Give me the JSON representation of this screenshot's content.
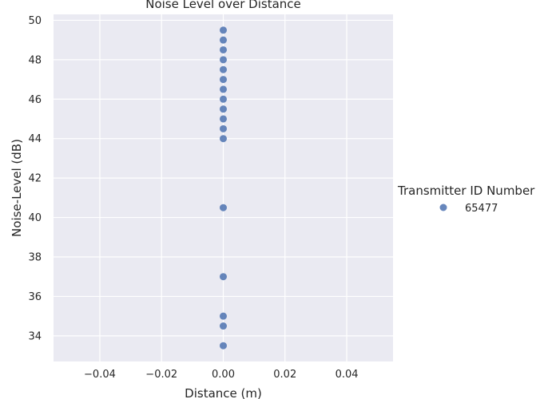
{
  "chart_data": {
    "type": "scatter",
    "title": "Noise Level over Distance",
    "xlabel": "Distance (m)",
    "ylabel": "Noise-Level (dB)",
    "xlim": [
      -0.055,
      0.055
    ],
    "ylim": [
      32.7,
      50.3
    ],
    "xticks": [
      -0.04,
      -0.02,
      0.0,
      0.02,
      0.04
    ],
    "xtick_labels": [
      "−0.04",
      "−0.02",
      "0.00",
      "0.02",
      "0.04"
    ],
    "yticks": [
      34,
      36,
      38,
      40,
      42,
      44,
      46,
      48,
      50
    ],
    "ytick_labels": [
      "34",
      "36",
      "38",
      "40",
      "42",
      "44",
      "46",
      "48",
      "50"
    ],
    "grid": true,
    "legend": {
      "title": "Transmitter ID Number",
      "placement": "right",
      "entries": [
        {
          "label": "65477",
          "color": "#4c72b0"
        }
      ]
    },
    "series": [
      {
        "name": "65477",
        "color": "#4c72b0",
        "points": [
          {
            "x": 0,
            "y": 49.5
          },
          {
            "x": 0,
            "y": 49.0
          },
          {
            "x": 0,
            "y": 48.5
          },
          {
            "x": 0,
            "y": 48.0
          },
          {
            "x": 0,
            "y": 47.5
          },
          {
            "x": 0,
            "y": 47.0
          },
          {
            "x": 0,
            "y": 46.5
          },
          {
            "x": 0,
            "y": 46.0
          },
          {
            "x": 0,
            "y": 45.5
          },
          {
            "x": 0,
            "y": 45.0
          },
          {
            "x": 0,
            "y": 44.5
          },
          {
            "x": 0,
            "y": 44.0
          },
          {
            "x": 0,
            "y": 40.5
          },
          {
            "x": 0,
            "y": 37.0
          },
          {
            "x": 0,
            "y": 35.0
          },
          {
            "x": 0,
            "y": 34.5
          },
          {
            "x": 0,
            "y": 33.5
          }
        ]
      }
    ]
  }
}
